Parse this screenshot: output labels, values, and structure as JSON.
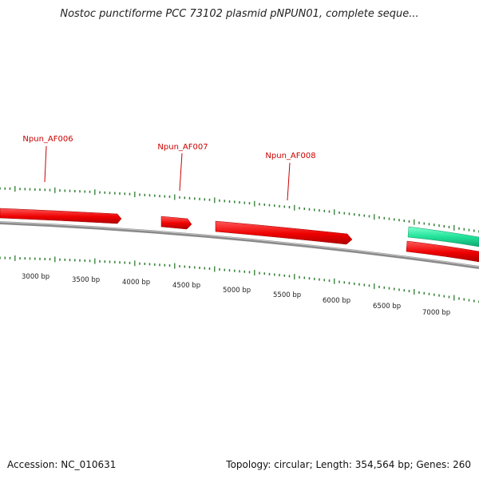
{
  "title": "Nostoc punctiforme PCC 73102 plasmid pNPUN01, complete seque...",
  "footer": {
    "accession": "Accession: NC_010631",
    "info": "Topology: circular; Length: 354,564 bp; Genes: 260"
  },
  "map": {
    "scale_labels": [
      "3000 bp",
      "3500 bp",
      "4000 bp",
      "4500 bp",
      "5000 bp",
      "5500 bp",
      "6000 bp",
      "6500 bp",
      "7000 bp"
    ],
    "gene_labels": [
      "Npun_AF006",
      "Npun_AF007",
      "Npun_AF008"
    ],
    "colors": {
      "gene_forward": "#ee0000",
      "gene_other": "#22e39a",
      "backbone": "#808080",
      "ticks": "#2e7d32",
      "labels": "#cc0000"
    }
  }
}
